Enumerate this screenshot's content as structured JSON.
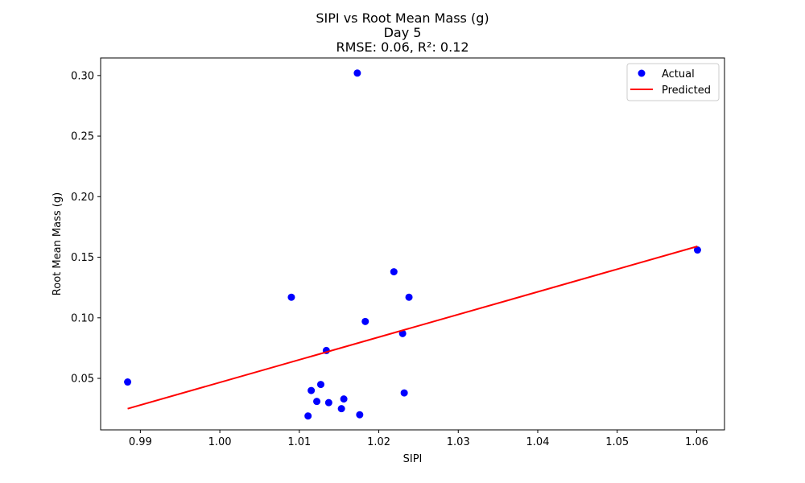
{
  "chart_data": {
    "type": "scatter",
    "title_lines": [
      "SIPI vs Root Mean Mass (g)",
      "Day 5",
      "RMSE: 0.06, R²: 0.12"
    ],
    "xlabel": "SIPI",
    "ylabel": "Root Mean Mass (g)",
    "xlim": [
      0.985,
      1.0635
    ],
    "ylim": [
      0.0075,
      0.3145
    ],
    "x_ticks": [
      0.99,
      1.0,
      1.01,
      1.02,
      1.03,
      1.04,
      1.05,
      1.06
    ],
    "x_tick_labels": [
      "0.99",
      "1.00",
      "1.01",
      "1.02",
      "1.03",
      "1.04",
      "1.05",
      "1.06"
    ],
    "y_ticks": [
      0.05,
      0.1,
      0.15,
      0.2,
      0.25,
      0.3
    ],
    "y_tick_labels": [
      "0.05",
      "0.10",
      "0.15",
      "0.20",
      "0.25",
      "0.30"
    ],
    "legend": {
      "position": "upper-right",
      "entries": [
        "Actual",
        "Predicted"
      ]
    },
    "colors": {
      "actual": "#0000ff",
      "predicted": "#ff0000"
    },
    "series": [
      {
        "name": "Actual",
        "kind": "scatter",
        "points": [
          [
            0.9884,
            0.047
          ],
          [
            1.009,
            0.117
          ],
          [
            1.0111,
            0.019
          ],
          [
            1.0115,
            0.04
          ],
          [
            1.0122,
            0.031
          ],
          [
            1.0127,
            0.045
          ],
          [
            1.0134,
            0.073
          ],
          [
            1.0137,
            0.03
          ],
          [
            1.0153,
            0.025
          ],
          [
            1.0156,
            0.033
          ],
          [
            1.0173,
            0.302
          ],
          [
            1.0176,
            0.02
          ],
          [
            1.0183,
            0.097
          ],
          [
            1.0219,
            0.138
          ],
          [
            1.023,
            0.087
          ],
          [
            1.0232,
            0.038
          ],
          [
            1.0238,
            0.117
          ],
          [
            1.0601,
            0.156
          ]
        ]
      },
      {
        "name": "Predicted",
        "kind": "line",
        "points": [
          [
            0.9884,
            0.025
          ],
          [
            1.0601,
            0.159
          ]
        ]
      }
    ]
  }
}
